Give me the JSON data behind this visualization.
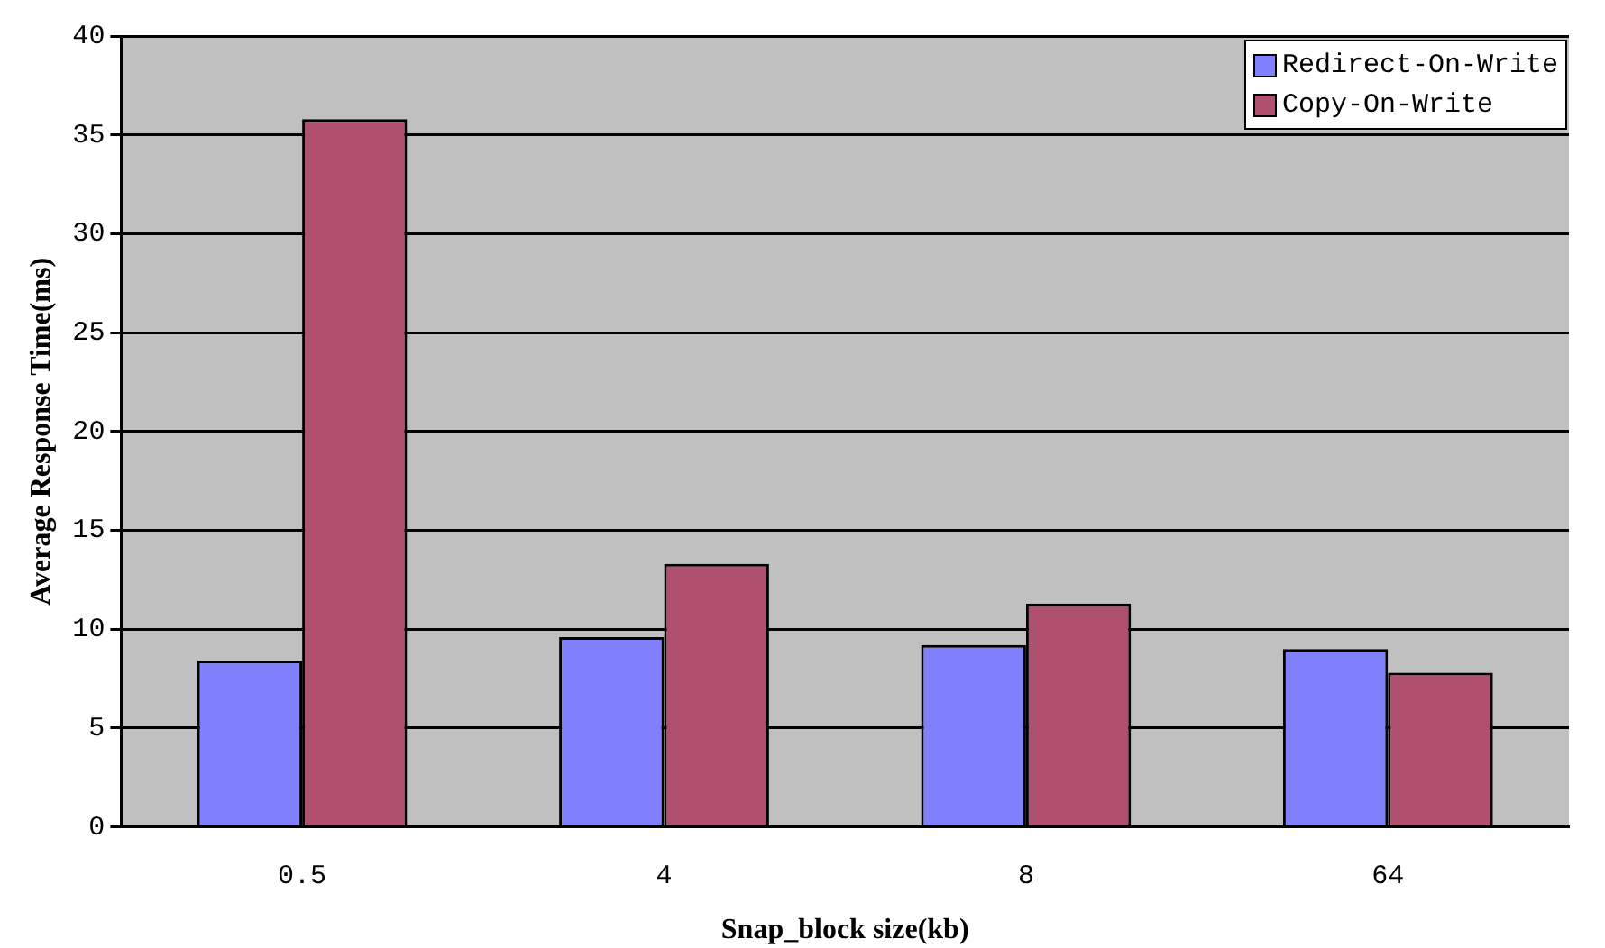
{
  "chart_data": {
    "type": "bar",
    "xlabel": "Snap_block size(kb)",
    "ylabel": "Average Response Time(ms)",
    "categories": [
      "0.5",
      "4",
      "8",
      "64"
    ],
    "series": [
      {
        "name": "Redirect-On-Write",
        "color": "#8080ff",
        "values": [
          8.4,
          9.6,
          9.2,
          9.0
        ]
      },
      {
        "name": "Copy-On-Write",
        "color": "#b0506f",
        "values": [
          35.8,
          13.3,
          11.3,
          7.8
        ]
      }
    ],
    "ylim": [
      0,
      40
    ],
    "yticks": [
      0,
      5,
      10,
      15,
      20,
      25,
      30,
      35,
      40
    ],
    "grid": "y",
    "legend": "top right"
  }
}
